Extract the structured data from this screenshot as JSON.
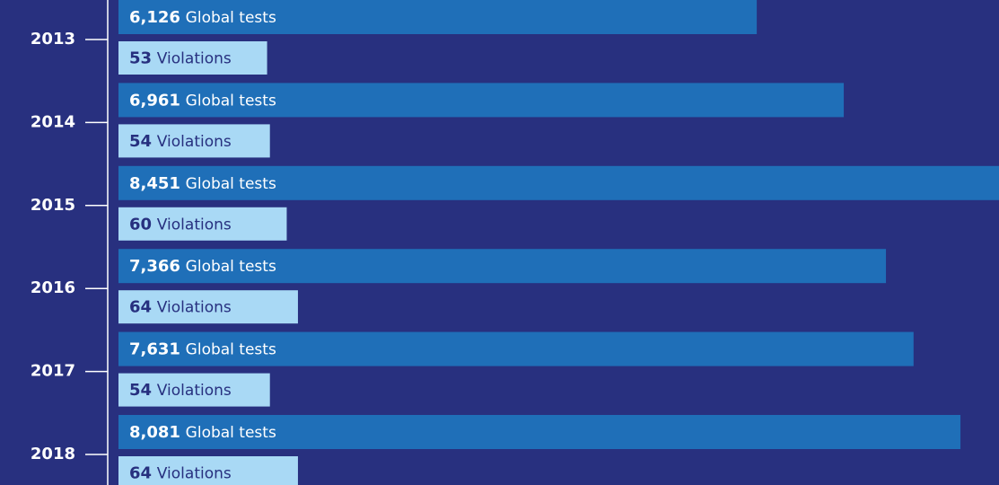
{
  "chart_data": {
    "type": "hbar",
    "categories": [
      "2013",
      "2014",
      "2015",
      "2016",
      "2017",
      "2018"
    ],
    "series": [
      {
        "name": "Global tests",
        "color": "#1f6fb8",
        "label_color": "#ffffff",
        "values": [
          6126,
          6961,
          8451,
          7366,
          7631,
          8081
        ],
        "value_labels": [
          "6,126",
          "6,961",
          "8,451",
          "7,366",
          "7,631",
          "8,081"
        ]
      },
      {
        "name": "Violations",
        "color": "#a9d9f5",
        "label_color": "#27307f",
        "axis": "x2",
        "values": [
          53,
          54,
          60,
          64,
          54,
          64
        ],
        "value_labels": [
          "53",
          "54",
          "60",
          "64",
          "54",
          "64"
        ]
      }
    ],
    "xlim": [
      0,
      8451
    ],
    "x2lim": [
      0,
      314
    ]
  }
}
